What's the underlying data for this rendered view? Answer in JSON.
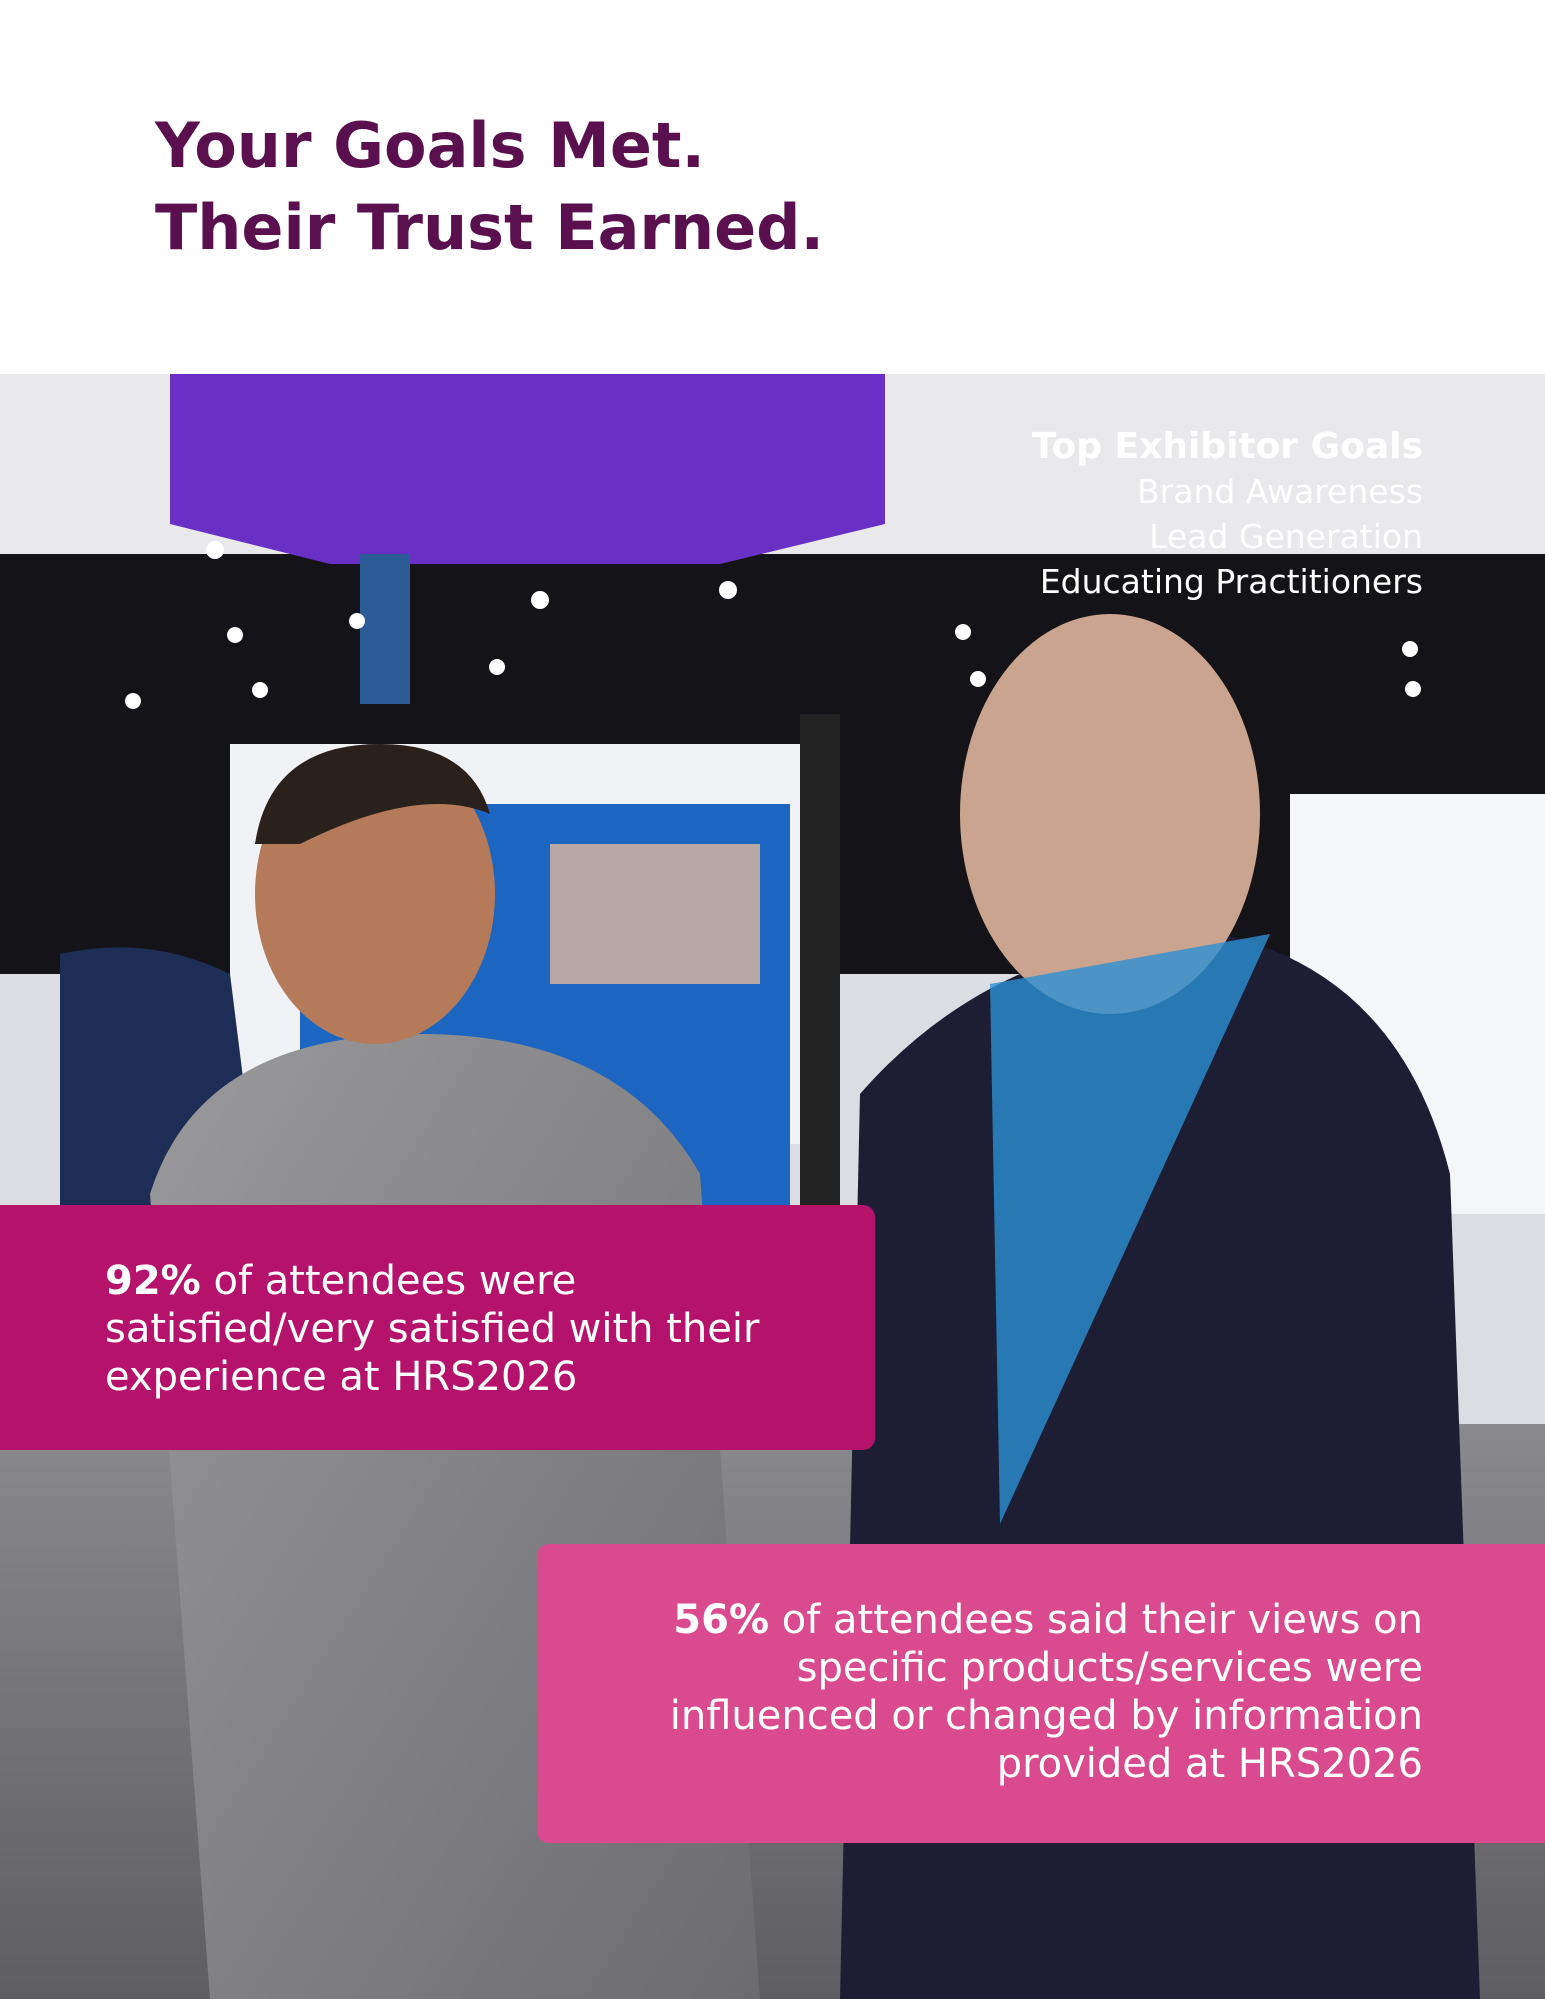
{
  "header": {
    "title_lines": [
      "Your Goals Met.",
      "Their Trust Earned."
    ]
  },
  "goals": {
    "title": "Top Exhibitor Goals",
    "items": [
      "Brand Awareness",
      "Lead Generation",
      "Educating Practitioners"
    ]
  },
  "stats": [
    {
      "highlight": "92%",
      "text": "of attendees were satisfied/very satisfied with their experience at HRS2026"
    },
    {
      "highlight": "56%",
      "text": "of attendees said their views on specific products/services were influenced or changed by information provided at HRS2026"
    }
  ]
}
